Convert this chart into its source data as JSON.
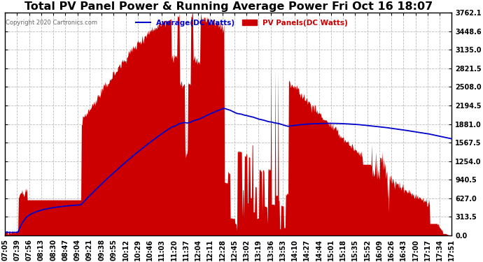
{
  "title": "Total PV Panel Power & Running Average Power Fri Oct 16 18:07",
  "copyright": "Copyright 2020 Cartronics.com",
  "legend_avg": "Average(DC Watts)",
  "legend_pv": "PV Panels(DC Watts)",
  "ymax": 3762.1,
  "yticks": [
    0.0,
    313.5,
    627.0,
    940.5,
    1254.0,
    1567.5,
    1881.0,
    2194.5,
    2508.0,
    2821.5,
    3135.0,
    3448.6,
    3762.1
  ],
  "bg_color": "#ffffff",
  "plot_bg_color": "#ffffff",
  "grid_color": "#bbbbbb",
  "pv_color": "#cc0000",
  "avg_color": "#0000cc",
  "title_fontsize": 11.5,
  "tick_fontsize": 7,
  "xtick_labels": [
    "07:05",
    "07:39",
    "07:56",
    "08:13",
    "08:30",
    "08:47",
    "09:04",
    "09:21",
    "09:38",
    "09:55",
    "10:12",
    "10:29",
    "10:46",
    "11:03",
    "11:20",
    "11:37",
    "12:04",
    "12:11",
    "12:28",
    "12:45",
    "13:02",
    "13:19",
    "13:36",
    "13:53",
    "14:10",
    "14:27",
    "14:44",
    "15:01",
    "15:18",
    "15:35",
    "15:52",
    "16:09",
    "16:26",
    "16:43",
    "17:00",
    "17:17",
    "17:34",
    "17:51"
  ]
}
